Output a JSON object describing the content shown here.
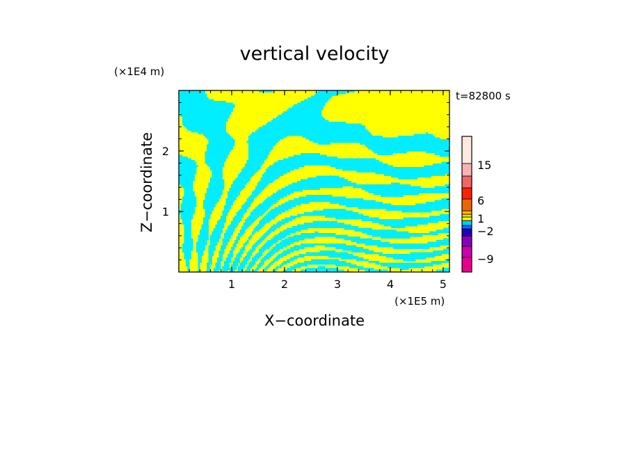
{
  "chart_data": {
    "type": "heatmap",
    "title": "vertical velocity",
    "xlabel": "X−coordinate",
    "ylabel": "Z−coordinate",
    "x_unit": "(×1E5 m)",
    "y_unit": "(×1E4 m)",
    "time_label": "t=82800 s",
    "xlim": [
      0,
      5.12
    ],
    "ylim": [
      0,
      3.0
    ],
    "x_ticks": [
      {
        "value": 1,
        "label": "1"
      },
      {
        "value": 2,
        "label": "2"
      },
      {
        "value": 3,
        "label": "3"
      },
      {
        "value": 4,
        "label": "4"
      },
      {
        "value": 5,
        "label": "5"
      }
    ],
    "y_ticks": [
      {
        "value": 1,
        "label": "1"
      },
      {
        "value": 2,
        "label": "2"
      }
    ],
    "field_colors": {
      "positive": "#ffff00",
      "negative": "#00eeff"
    },
    "colorbar": {
      "levels": [
        {
          "color": "#e8008c"
        },
        {
          "color": "#cc00aa"
        },
        {
          "color": "#8800bb"
        },
        {
          "color": "#2200bb"
        },
        {
          "color": "#1166ff"
        },
        {
          "color": "#00ccff"
        },
        {
          "color": "#ffff00"
        },
        {
          "color": "#ffdd00"
        },
        {
          "color": "#ffbb00"
        },
        {
          "color": "#ee6600"
        },
        {
          "color": "#ff2200"
        },
        {
          "color": "#ee6666"
        },
        {
          "color": "#f5b4b4"
        },
        {
          "color": "#fde8e0"
        }
      ],
      "labels": [
        {
          "value": -9,
          "label": "−9"
        },
        {
          "value": -2,
          "label": "−2"
        },
        {
          "value": 1,
          "label": "1"
        },
        {
          "value": 6,
          "label": "6"
        },
        {
          "value": 15,
          "label": "15"
        }
      ]
    }
  }
}
